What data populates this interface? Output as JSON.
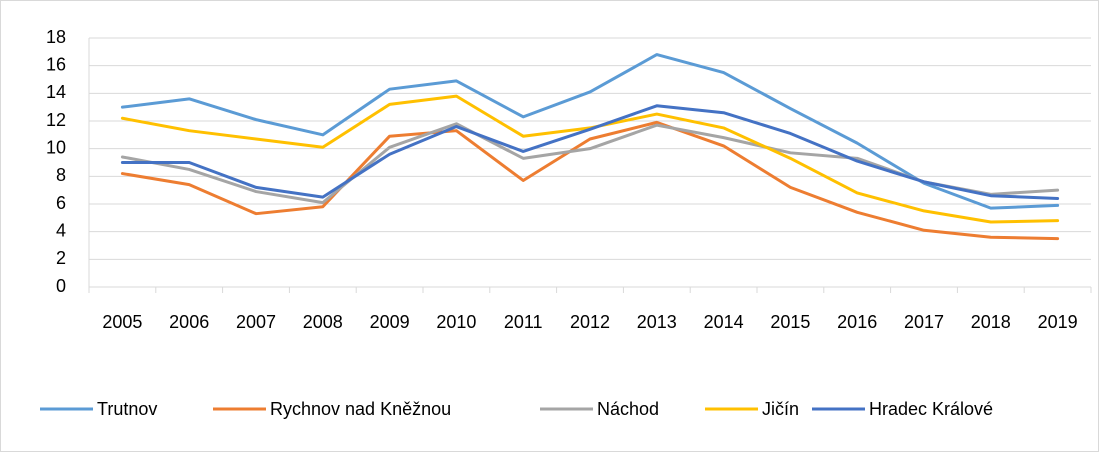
{
  "chart_data": {
    "type": "line",
    "categories": [
      "2005",
      "2006",
      "2007",
      "2008",
      "2009",
      "2010",
      "2011",
      "2012",
      "2013",
      "2014",
      "2015",
      "2016",
      "2017",
      "2018",
      "2019"
    ],
    "series": [
      {
        "name": "Trutnov",
        "color": "#5b9bd5",
        "values": [
          13.0,
          13.6,
          12.1,
          11.0,
          14.3,
          14.9,
          12.3,
          14.1,
          16.8,
          15.5,
          12.9,
          10.4,
          7.5,
          5.7,
          5.9
        ]
      },
      {
        "name": "Rychnov nad Kněžnou",
        "color": "#ed7d31",
        "values": [
          8.2,
          7.4,
          5.3,
          5.8,
          10.9,
          11.3,
          7.7,
          10.7,
          11.9,
          10.2,
          7.2,
          5.4,
          4.1,
          3.6,
          3.5
        ]
      },
      {
        "name": "Náchod",
        "color": "#a5a5a5",
        "values": [
          9.4,
          8.5,
          6.9,
          6.1,
          10.1,
          11.8,
          9.3,
          10.0,
          11.7,
          10.8,
          9.7,
          9.3,
          7.6,
          6.7,
          7.0
        ]
      },
      {
        "name": "Jičín",
        "color": "#ffc000",
        "values": [
          12.2,
          11.3,
          10.7,
          10.1,
          13.2,
          13.8,
          10.9,
          11.5,
          12.5,
          11.5,
          9.3,
          6.8,
          5.5,
          4.7,
          4.8
        ]
      },
      {
        "name": "Hradec Králové",
        "color": "#4472c4",
        "values": [
          9.0,
          9.0,
          7.2,
          6.5,
          9.6,
          11.6,
          9.8,
          11.4,
          13.1,
          12.6,
          11.1,
          9.1,
          7.6,
          6.6,
          6.4
        ]
      }
    ],
    "ylim": [
      0,
      18
    ],
    "yticks": [
      0,
      2,
      4,
      6,
      8,
      10,
      12,
      14,
      16,
      18
    ],
    "grid": true,
    "legend": "bottom"
  }
}
